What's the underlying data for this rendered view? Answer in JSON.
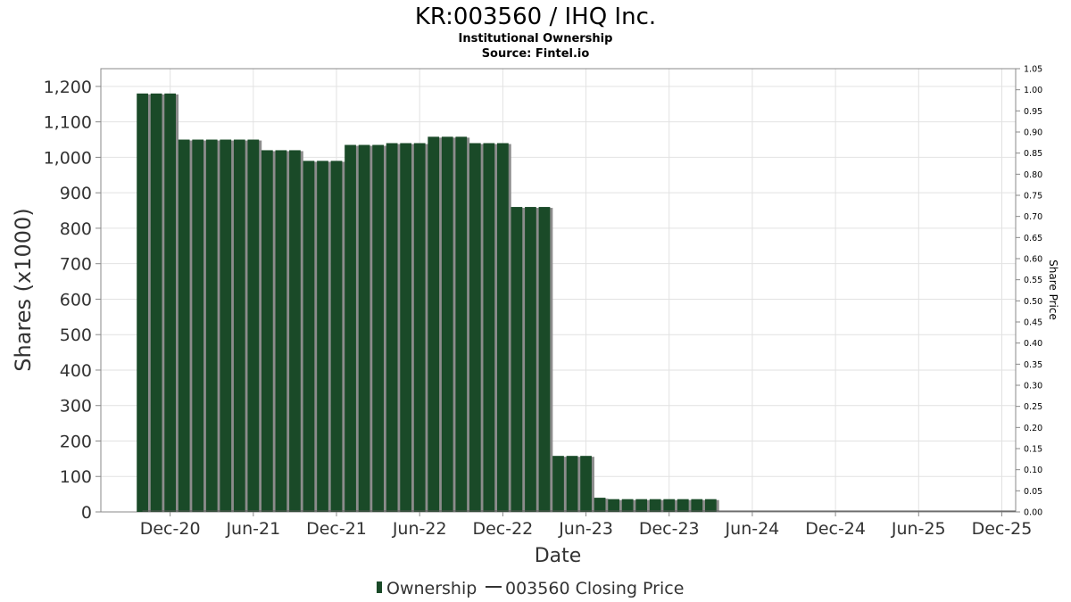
{
  "title": "KR:003560 / IHQ Inc.",
  "subtitle": "Institutional Ownership",
  "source": "Source: Fintel.io",
  "xlabel": "Date",
  "ylabel": "Shares (x1000)",
  "y2label": "Share Price",
  "legend": {
    "ownership": "Ownership",
    "price": "003560 Closing Price"
  },
  "colors": {
    "bar": "#1a4a28",
    "bar_shadow": "#8c8c8c",
    "grid": "#e2e2e2",
    "axis": "#888888",
    "legend_line": "#333333"
  },
  "chart_data": {
    "type": "bar",
    "title": "KR:003560 / IHQ Inc.",
    "xlabel": "Date",
    "ylabel": "Shares (x1000)",
    "y2label": "Share Price",
    "ylim": [
      0,
      1250
    ],
    "y2lim": [
      0,
      1.05
    ],
    "yticks": [
      "0",
      "100",
      "200",
      "300",
      "400",
      "500",
      "600",
      "700",
      "800",
      "900",
      "1,000",
      "1,100",
      "1,200"
    ],
    "y2ticks": [
      "0.00",
      "0.05",
      "0.10",
      "0.15",
      "0.20",
      "0.25",
      "0.30",
      "0.35",
      "0.40",
      "0.45",
      "0.50",
      "0.55",
      "0.60",
      "0.65",
      "0.70",
      "0.75",
      "0.80",
      "0.85",
      "0.90",
      "0.95",
      "1.00",
      "1.05"
    ],
    "xticks": [
      "Dec-20",
      "Jun-21",
      "Dec-21",
      "Jun-22",
      "Dec-22",
      "Jun-23",
      "Dec-23",
      "Jun-24",
      "Dec-24",
      "Jun-25",
      "Dec-25"
    ],
    "x_start": "2020-07",
    "x_end": "2026-01",
    "grid": true,
    "legend_position": "bottom",
    "series": [
      {
        "name": "Ownership",
        "x": [
          "2020-10",
          "2020-11",
          "2020-12",
          "2021-01",
          "2021-02",
          "2021-03",
          "2021-04",
          "2021-05",
          "2021-06",
          "2021-07",
          "2021-08",
          "2021-09",
          "2021-10",
          "2021-11",
          "2021-12",
          "2022-01",
          "2022-02",
          "2022-03",
          "2022-04",
          "2022-05",
          "2022-06",
          "2022-07",
          "2022-08",
          "2022-09",
          "2022-10",
          "2022-11",
          "2022-12",
          "2023-01",
          "2023-02",
          "2023-03",
          "2023-04",
          "2023-05",
          "2023-06",
          "2023-07",
          "2023-08",
          "2023-09",
          "2023-10",
          "2023-11",
          "2023-12",
          "2024-01",
          "2024-02",
          "2024-03"
        ],
        "values": [
          1180,
          1180,
          1180,
          1050,
          1050,
          1050,
          1050,
          1050,
          1050,
          1020,
          1020,
          1020,
          990,
          990,
          990,
          1035,
          1035,
          1035,
          1040,
          1040,
          1040,
          1058,
          1058,
          1058,
          1040,
          1040,
          1040,
          860,
          860,
          860,
          158,
          158,
          158,
          40,
          36,
          36,
          36,
          36,
          36,
          36,
          36,
          36
        ]
      },
      {
        "name": "003560 Closing Price",
        "x": [],
        "values": []
      }
    ]
  }
}
